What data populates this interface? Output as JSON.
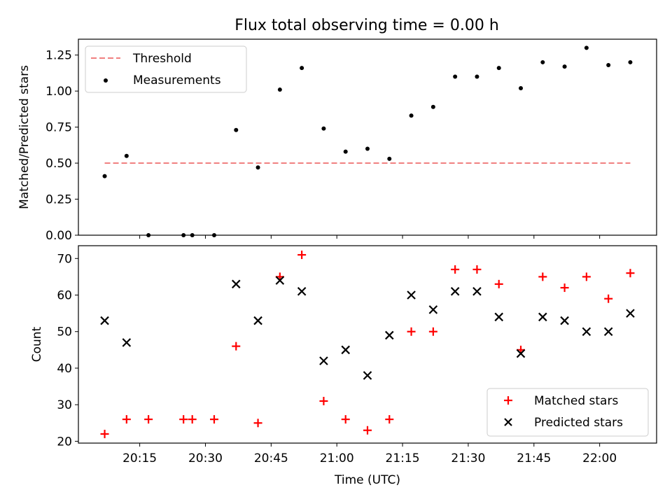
{
  "title": "Flux total observing time = 0.00 h",
  "chart_data": [
    {
      "type": "scatter",
      "panel": "top",
      "ylabel": "Matched/Predicted stars",
      "xlabel": "",
      "ylim": [
        0,
        1.36
      ],
      "yticks": [
        0,
        0.25,
        0.5,
        0.75,
        1.0,
        1.25
      ],
      "ytick_labels": [
        "0.00",
        "0.25",
        "0.50",
        "0.75",
        "1.00",
        "1.25"
      ],
      "legend_position": "top-left",
      "threshold": {
        "name": "Threshold",
        "value": 0.5,
        "x_start": "20:07",
        "x_end": "22:07",
        "color": "#f08080"
      },
      "series": [
        {
          "name": "Measurements",
          "color": "#000000",
          "x": [
            "20:07",
            "20:12",
            "20:17",
            "20:25",
            "20:27",
            "20:32",
            "20:37",
            "20:42",
            "20:47",
            "20:52",
            "20:57",
            "21:02",
            "21:07",
            "21:12",
            "21:17",
            "21:22",
            "21:27",
            "21:32",
            "21:37",
            "21:42",
            "21:47",
            "21:52",
            "21:57",
            "22:02",
            "22:07"
          ],
          "values": [
            0.41,
            0.55,
            0.0,
            0.0,
            0.0,
            0.0,
            0.73,
            0.47,
            1.01,
            1.16,
            0.74,
            0.58,
            0.6,
            0.53,
            0.83,
            0.89,
            1.1,
            1.1,
            1.16,
            1.02,
            1.2,
            1.17,
            1.3,
            1.18,
            1.2
          ]
        }
      ]
    },
    {
      "type": "scatter",
      "panel": "bottom",
      "xlabel": "Time (UTC)",
      "ylabel": "Count",
      "ylim": [
        19.5,
        73.5
      ],
      "yticks": [
        20,
        30,
        40,
        50,
        60,
        70
      ],
      "ytick_labels": [
        "20",
        "30",
        "40",
        "50",
        "60",
        "70"
      ],
      "xlim": [
        "20:01",
        "22:13"
      ],
      "xticks": [
        "20:15",
        "20:30",
        "20:45",
        "21:00",
        "21:15",
        "21:30",
        "21:45",
        "22:00"
      ],
      "legend_position": "bottom-right",
      "series": [
        {
          "name": "Matched stars",
          "marker": "+",
          "color": "#ff0000",
          "x": [
            "20:07",
            "20:12",
            "20:17",
            "20:25",
            "20:27",
            "20:32",
            "20:37",
            "20:42",
            "20:47",
            "20:52",
            "20:57",
            "21:02",
            "21:07",
            "21:12",
            "21:17",
            "21:22",
            "21:27",
            "21:32",
            "21:37",
            "21:42",
            "21:47",
            "21:52",
            "21:57",
            "22:02",
            "22:07"
          ],
          "values": [
            22,
            26,
            26,
            26,
            26,
            26,
            46,
            25,
            65,
            71,
            31,
            26,
            23,
            26,
            50,
            50,
            67,
            67,
            63,
            45,
            65,
            62,
            65,
            59,
            66
          ]
        },
        {
          "name": "Predicted stars",
          "marker": "x",
          "color": "#000000",
          "x": [
            "20:07",
            "20:12",
            "20:37",
            "20:42",
            "20:47",
            "20:52",
            "20:57",
            "21:02",
            "21:07",
            "21:12",
            "21:17",
            "21:22",
            "21:27",
            "21:32",
            "21:37",
            "21:42",
            "21:47",
            "21:52",
            "21:57",
            "22:02",
            "22:07"
          ],
          "values": [
            53,
            47,
            63,
            53,
            64,
            61,
            42,
            45,
            38,
            49,
            60,
            56,
            61,
            61,
            54,
            44,
            54,
            53,
            50,
            50,
            55
          ]
        }
      ]
    }
  ]
}
